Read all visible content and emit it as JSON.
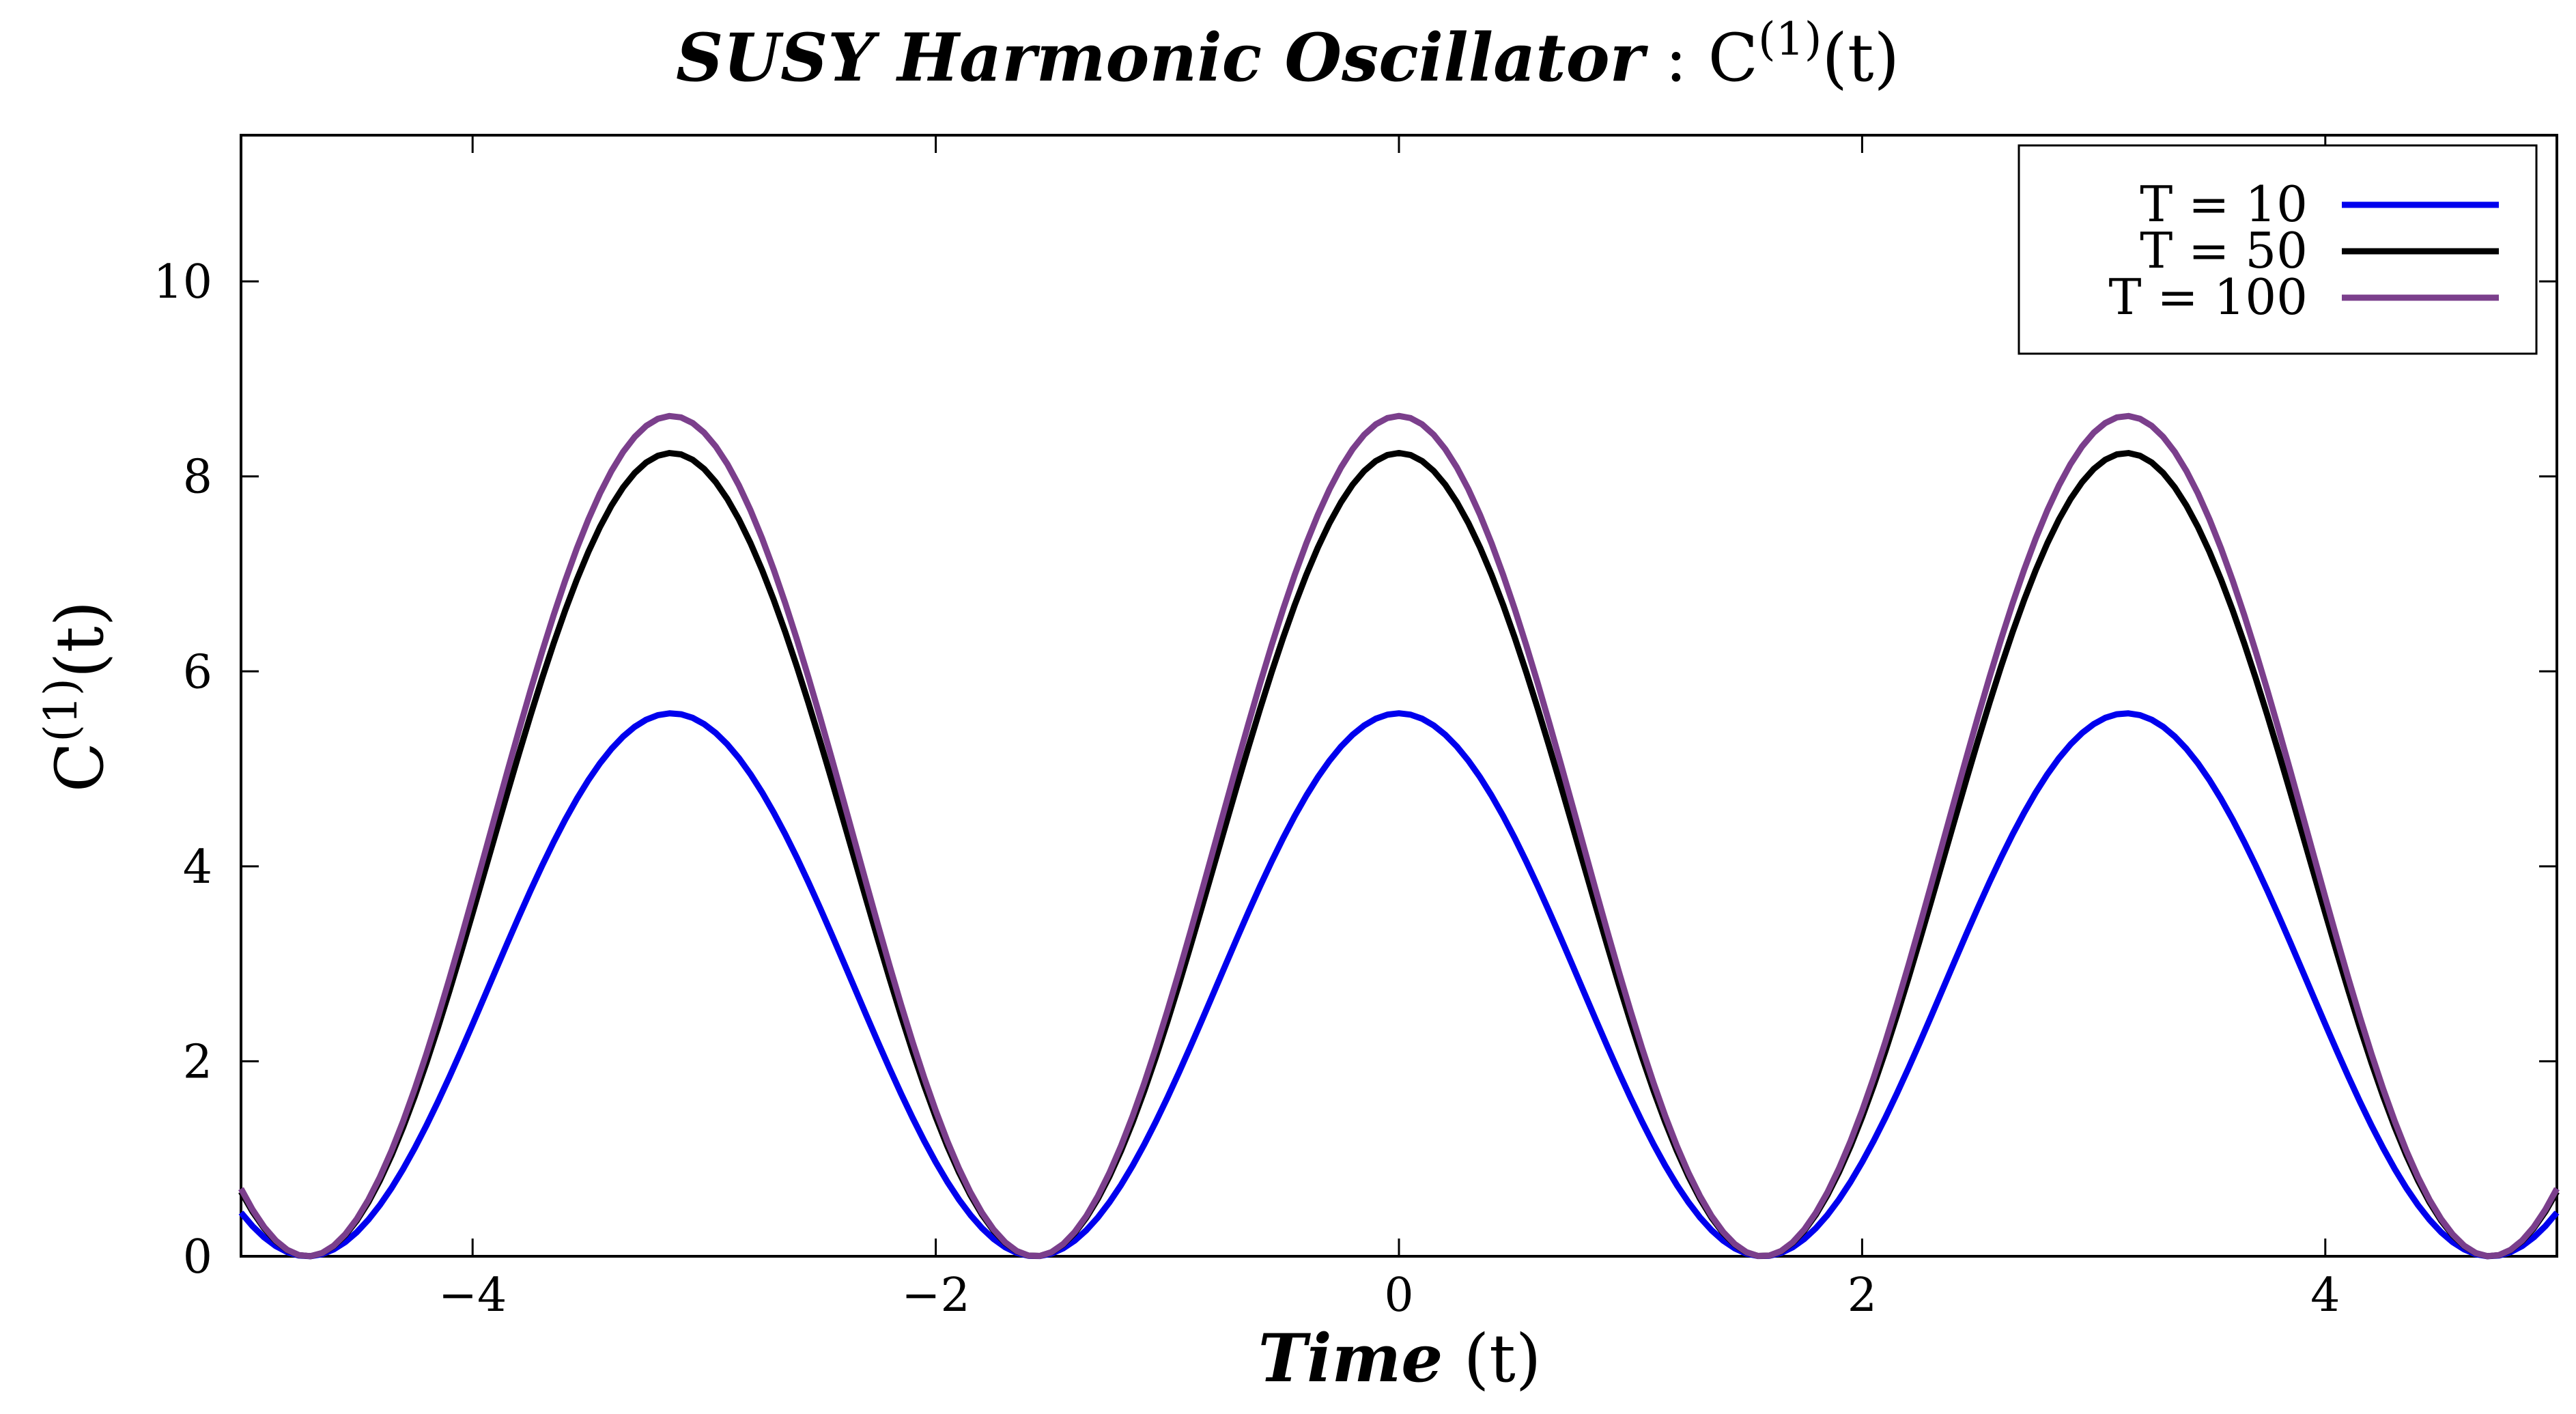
{
  "chart_data": {
    "type": "line",
    "title": {
      "italic_part": "SUSY Harmonic Oscillator",
      "separator": " : ",
      "symbol": "C",
      "superscript": "(1)",
      "suffix": "(t)"
    },
    "xlabel": {
      "italic_part": "Time",
      "plain_part": " (t)"
    },
    "ylabel": {
      "symbol": "C",
      "superscript": "(1)",
      "suffix": "(t)"
    },
    "xlim": [
      -5,
      5
    ],
    "ylim": [
      0,
      11.5
    ],
    "xticks": [
      -4,
      -2,
      0,
      2,
      4
    ],
    "xtick_labels": [
      "−4",
      "−2",
      "0",
      "2",
      "4"
    ],
    "yticks": [
      0,
      2,
      4,
      6,
      8,
      10
    ],
    "ytick_labels": [
      "0",
      "2",
      "4",
      "6",
      "8",
      "10"
    ],
    "grid": false,
    "legend_position": "top-right",
    "x_range_sampled": {
      "start": -5,
      "end": 5,
      "step": 0.05
    },
    "series": [
      {
        "name": "T = 10",
        "color": "#0000ee",
        "peak": 5.57,
        "curve": "C(t) = peak · cos²(t)"
      },
      {
        "name": "T = 50",
        "color": "#000000",
        "peak": 8.24,
        "curve": "C(t) = peak · cos²(t)"
      },
      {
        "name": "T = 100",
        "color": "#7b3f8c",
        "peak": 8.62,
        "curve": "C(t) = peak · cos²(t)"
      }
    ],
    "annotations": []
  }
}
